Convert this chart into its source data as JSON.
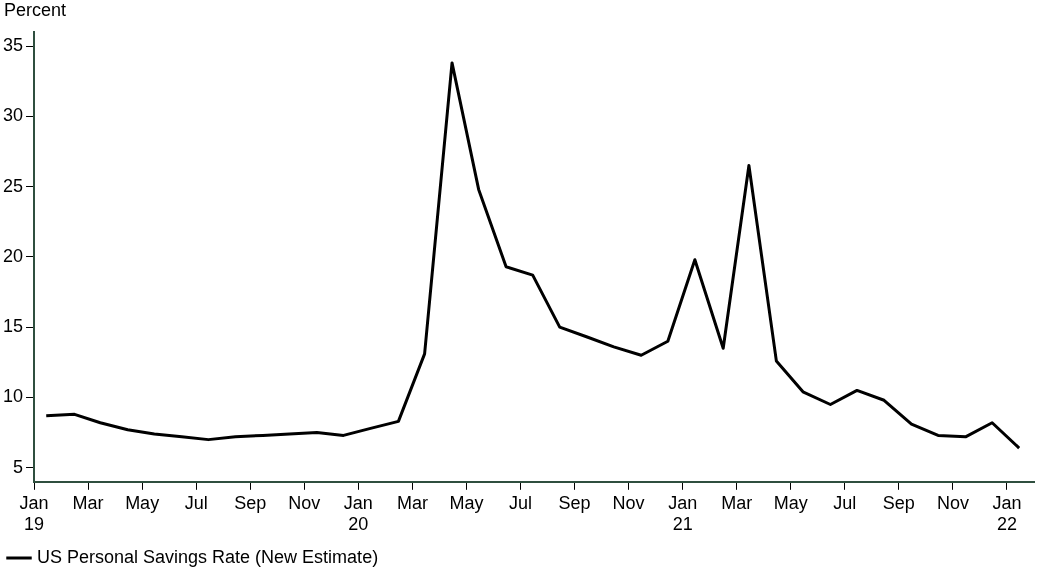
{
  "chart_data": {
    "type": "line",
    "ylabel": "Percent",
    "x": [
      "2019-01-15",
      "2019-02-15",
      "2019-03-15",
      "2019-04-15",
      "2019-05-15",
      "2019-06-15",
      "2019-07-15",
      "2019-08-15",
      "2019-09-15",
      "2019-10-15",
      "2019-11-15",
      "2019-12-15",
      "2020-01-15",
      "2020-02-15",
      "2020-03-15",
      "2020-04-15",
      "2020-05-15",
      "2020-06-15",
      "2020-07-15",
      "2020-08-15",
      "2020-09-15",
      "2020-10-15",
      "2020-11-15",
      "2020-12-15",
      "2021-01-15",
      "2021-02-15",
      "2021-03-15",
      "2021-04-15",
      "2021-05-15",
      "2021-06-15",
      "2021-07-15",
      "2021-08-15",
      "2021-09-15",
      "2021-10-15",
      "2021-11-15",
      "2021-12-15",
      "2022-01-15"
    ],
    "series": [
      {
        "name": "US Personal Savings Rate (New Estimate)",
        "color": "#000000",
        "values": [
          8.7,
          8.8,
          8.2,
          7.7,
          7.4,
          7.2,
          7.0,
          7.2,
          7.3,
          7.4,
          7.5,
          7.3,
          7.8,
          8.3,
          13.1,
          33.8,
          24.8,
          19.3,
          18.7,
          15.0,
          14.3,
          13.6,
          13.0,
          14.0,
          19.8,
          13.5,
          26.5,
          12.6,
          10.4,
          9.5,
          10.5,
          9.8,
          8.1,
          7.3,
          7.2,
          8.2,
          6.4
        ]
      }
    ],
    "xlim": [
      "2019-01",
      "2022-02"
    ],
    "xticks": [
      {
        "value": "2019-01",
        "label": "Jan\n19"
      },
      {
        "value": "2019-03",
        "label": "Mar"
      },
      {
        "value": "2019-05",
        "label": "May"
      },
      {
        "value": "2019-07",
        "label": "Jul"
      },
      {
        "value": "2019-09",
        "label": "Sep"
      },
      {
        "value": "2019-11",
        "label": "Nov"
      },
      {
        "value": "2020-01",
        "label": "Jan\n20"
      },
      {
        "value": "2020-03",
        "label": "Mar"
      },
      {
        "value": "2020-05",
        "label": "May"
      },
      {
        "value": "2020-07",
        "label": "Jul"
      },
      {
        "value": "2020-09",
        "label": "Sep"
      },
      {
        "value": "2020-11",
        "label": "Nov"
      },
      {
        "value": "2021-01",
        "label": "Jan\n21"
      },
      {
        "value": "2021-03",
        "label": "Mar"
      },
      {
        "value": "2021-05",
        "label": "May"
      },
      {
        "value": "2021-07",
        "label": "Jul"
      },
      {
        "value": "2021-09",
        "label": "Sep"
      },
      {
        "value": "2021-11",
        "label": "Nov"
      },
      {
        "value": "2022-01",
        "label": "Jan\n22"
      }
    ],
    "ylim": [
      4,
      36
    ],
    "yticks": [
      5,
      10,
      15,
      20,
      25,
      30,
      35
    ],
    "grid": false,
    "legend": "bottom left",
    "marker": "none",
    "line_style": "solid"
  }
}
